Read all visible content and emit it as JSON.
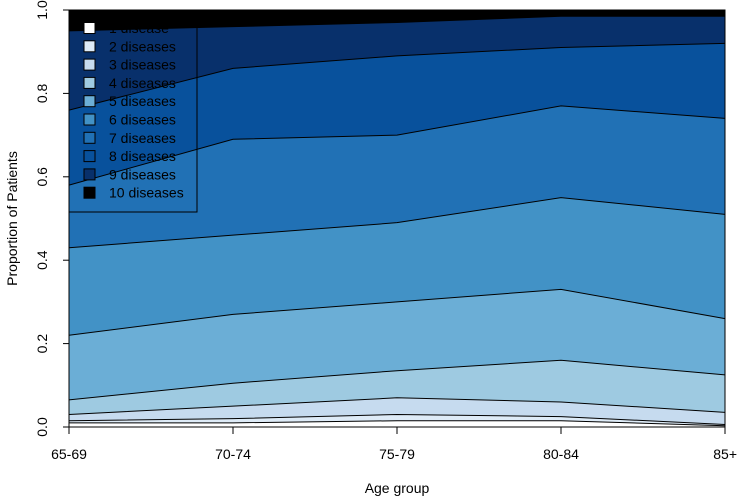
{
  "chart_data": {
    "type": "area",
    "stacked": true,
    "x": [
      "65-69",
      "70-74",
      "75-79",
      "80-84",
      "85+"
    ],
    "xlabel": "Age group",
    "ylabel": "Proportion of Patients",
    "ylim": [
      0,
      1
    ],
    "yticks": [
      "0.0",
      "0.2",
      "0.4",
      "0.6",
      "0.8",
      "1.0"
    ],
    "grid": false,
    "legend_position": "top-left",
    "cumulative_boundaries": [
      [
        0.01,
        0.01,
        0.015,
        0.015,
        0.003
      ],
      [
        0.015,
        0.02,
        0.03,
        0.025,
        0.006
      ],
      [
        0.03,
        0.05,
        0.07,
        0.06,
        0.035
      ],
      [
        0.065,
        0.105,
        0.135,
        0.16,
        0.125
      ],
      [
        0.22,
        0.27,
        0.3,
        0.33,
        0.26
      ],
      [
        0.43,
        0.46,
        0.49,
        0.55,
        0.51
      ],
      [
        0.58,
        0.69,
        0.7,
        0.77,
        0.74
      ],
      [
        0.76,
        0.86,
        0.89,
        0.91,
        0.92
      ],
      [
        0.95,
        0.96,
        0.97,
        0.985,
        0.985
      ],
      [
        1.0,
        1.0,
        1.0,
        1.0,
        1.0
      ]
    ],
    "series": [
      {
        "name": "1 disease",
        "color": "#ffffff"
      },
      {
        "name": "2 diseases",
        "color": "#deebf7"
      },
      {
        "name": "3 diseases",
        "color": "#c6dbef"
      },
      {
        "name": "4 diseases",
        "color": "#9ecae1"
      },
      {
        "name": "5 diseases",
        "color": "#6baed6"
      },
      {
        "name": "6 diseases",
        "color": "#4292c6"
      },
      {
        "name": "7 diseases",
        "color": "#2171b5"
      },
      {
        "name": "8 diseases",
        "color": "#08519c"
      },
      {
        "name": "9 diseases",
        "color": "#08306b"
      },
      {
        "name": "10 diseases",
        "color": "#000000"
      }
    ]
  }
}
